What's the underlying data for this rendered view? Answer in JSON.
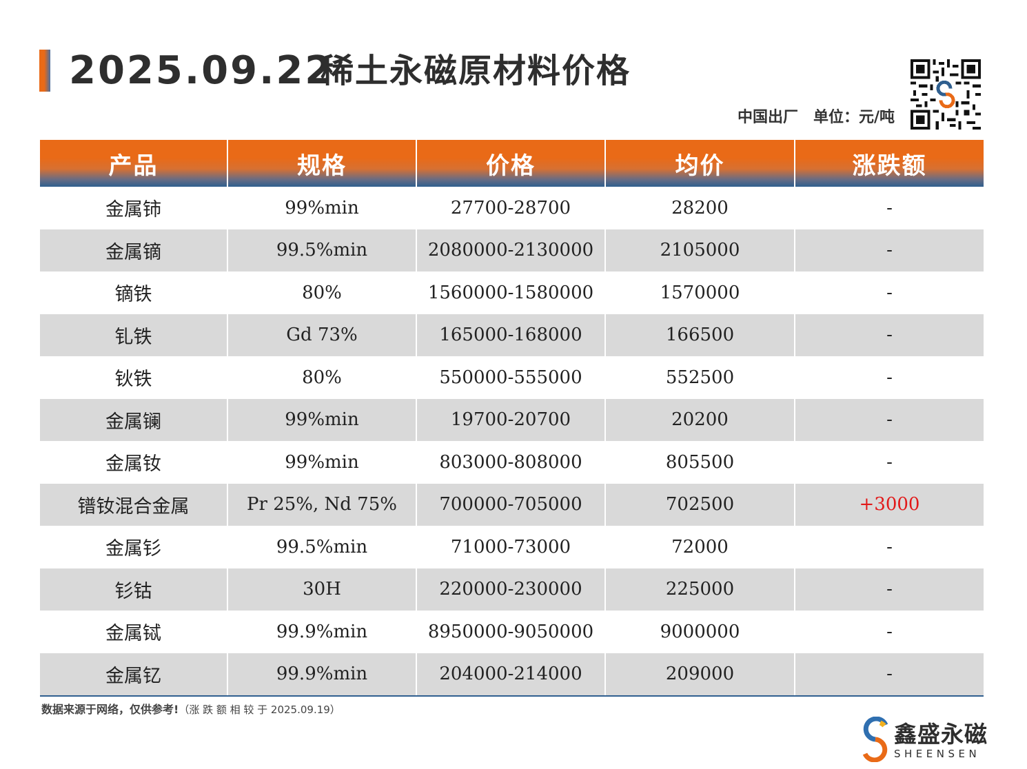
{
  "header": {
    "date": "2025.09.22",
    "title": "稀土永磁原材料价格",
    "origin": "中国出厂",
    "unit": "单位：元/吨"
  },
  "colors": {
    "header_orange": "#e96a17",
    "header_blue": "#2f5f8f",
    "row_alt": "#d9d9d9",
    "positive_change": "#e21a1a"
  },
  "table": {
    "columns": [
      "产品",
      "规格",
      "价格",
      "均价",
      "涨跌额"
    ],
    "rows": [
      [
        "金属铈",
        "99%min",
        "27700-28700",
        "28200",
        "-"
      ],
      [
        "金属镝",
        "99.5%min",
        "2080000-2130000",
        "2105000",
        "-"
      ],
      [
        "镝铁",
        "80%",
        "1560000-1580000",
        "1570000",
        "-"
      ],
      [
        "钆铁",
        "Gd 73%",
        "165000-168000",
        "166500",
        "-"
      ],
      [
        "钬铁",
        "80%",
        "550000-555000",
        "552500",
        "-"
      ],
      [
        "金属镧",
        "99%min",
        "19700-20700",
        "20200",
        "-"
      ],
      [
        "金属钕",
        "99%min",
        "803000-808000",
        "805500",
        "-"
      ],
      [
        "镨钕混合金属",
        "Pr 25%, Nd 75%",
        "700000-705000",
        "702500",
        "+3000"
      ],
      [
        "金属钐",
        "99.5%min",
        "71000-73000",
        "72000",
        "-"
      ],
      [
        "钐钴",
        "30H",
        "220000-230000",
        "225000",
        "-"
      ],
      [
        "金属铽",
        "99.9%min",
        "8950000-9050000",
        "9000000",
        "-"
      ],
      [
        "金属钇",
        "99.9%min",
        "204000-214000",
        "209000",
        "-"
      ]
    ]
  },
  "footer": {
    "source": "数据来源于网络，仅供参考!",
    "note": "（涨 跌 额 相 较 于 2025.09.19）"
  },
  "brand": {
    "name": "鑫盛永磁",
    "name_en": "SHEENSEN",
    "qr_icon": "qr-code-icon",
    "logo_icon": "sheensen-s-logo-icon"
  }
}
